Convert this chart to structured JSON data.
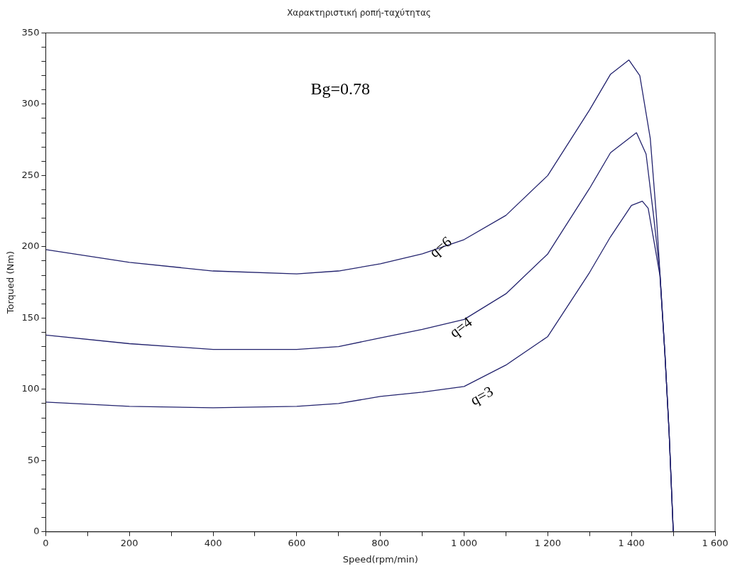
{
  "chart_data": {
    "type": "line",
    "title": "Χαρακτηριστική ροπή-ταχύτητας",
    "xlabel": "Speed(rpm/min)",
    "ylabel": "Torqued (Nm)",
    "annotations": [
      "Bg=0.78"
    ],
    "xlim": [
      0,
      1600
    ],
    "ylim": [
      0,
      350
    ],
    "xticks": [
      0,
      {
        "value": 100,
        "label": null
      },
      {
        "value": 200,
        "label": "200"
      },
      {
        "value": 300,
        "label": null
      },
      {
        "value": 400,
        "label": "400"
      },
      {
        "value": 500,
        "label": null
      },
      {
        "value": 600,
        "label": "600"
      },
      {
        "value": 700,
        "label": null
      },
      {
        "value": 800,
        "label": "800"
      },
      {
        "value": 900,
        "label": null
      },
      {
        "value": 1000,
        "label": "1 000"
      },
      {
        "value": 1100,
        "label": null
      },
      {
        "value": 1200,
        "label": "1 200"
      },
      {
        "value": 1300,
        "label": null
      },
      {
        "value": 1400,
        "label": "1 400"
      },
      {
        "value": 1500,
        "label": null
      },
      {
        "value": 1600,
        "label": "1 600"
      }
    ],
    "yticks": [
      0,
      {
        "value": 10,
        "label": null
      },
      {
        "value": 20,
        "label": null
      },
      {
        "value": 30,
        "label": null
      },
      {
        "value": 40,
        "label": null
      },
      50,
      {
        "value": 60,
        "label": null
      },
      {
        "value": 70,
        "label": null
      },
      {
        "value": 80,
        "label": null
      },
      {
        "value": 90,
        "label": null
      },
      100,
      {
        "value": 110,
        "label": null
      },
      {
        "value": 120,
        "label": null
      },
      {
        "value": 130,
        "label": null
      },
      {
        "value": 140,
        "label": null
      },
      150,
      {
        "value": 160,
        "label": null
      },
      {
        "value": 170,
        "label": null
      },
      {
        "value": 180,
        "label": null
      },
      {
        "value": 190,
        "label": null
      },
      200,
      {
        "value": 210,
        "label": null
      },
      {
        "value": 220,
        "label": null
      },
      {
        "value": 230,
        "label": null
      },
      {
        "value": 240,
        "label": null
      },
      250,
      {
        "value": 260,
        "label": null
      },
      {
        "value": 270,
        "label": null
      },
      {
        "value": 280,
        "label": null
      },
      {
        "value": 290,
        "label": null
      },
      300,
      {
        "value": 310,
        "label": null
      },
      {
        "value": 320,
        "label": null
      },
      {
        "value": 330,
        "label": null
      },
      {
        "value": 340,
        "label": null
      },
      350
    ],
    "grid": false,
    "legend": false,
    "marker": "none",
    "line_style": "solid",
    "series": [
      {
        "name": "q=6",
        "color": "#23236e",
        "x": [
          0,
          200,
          400,
          600,
          700,
          800,
          900,
          1000,
          1100,
          1200,
          1300,
          1350,
          1394,
          1420,
          1445,
          1460,
          1468,
          1480,
          1490,
          1500
        ],
        "values": [
          198,
          189,
          183,
          181,
          183,
          188,
          195,
          205,
          222,
          250,
          296,
          321,
          331,
          320,
          276,
          220,
          182,
          125,
          70,
          0
        ]
      },
      {
        "name": "q=4",
        "color": "#23236e",
        "x": [
          0,
          200,
          400,
          600,
          700,
          800,
          900,
          1000,
          1100,
          1200,
          1300,
          1350,
          1412,
          1435,
          1452,
          1468,
          1480,
          1490,
          1500
        ],
        "values": [
          138,
          132,
          128,
          128,
          130,
          136,
          142,
          149,
          167,
          195,
          241,
          266,
          280,
          265,
          224,
          182,
          125,
          70,
          0
        ]
      },
      {
        "name": "q=3",
        "color": "#23236e",
        "x": [
          0,
          200,
          400,
          600,
          700,
          800,
          900,
          1000,
          1100,
          1200,
          1300,
          1350,
          1400,
          1426,
          1440,
          1452,
          1468,
          1480,
          1490,
          1500
        ],
        "values": [
          91,
          88,
          87,
          88,
          90,
          95,
          98,
          102,
          117,
          137,
          182,
          207,
          229,
          232,
          227,
          207,
          180,
          125,
          70,
          0
        ]
      }
    ]
  }
}
